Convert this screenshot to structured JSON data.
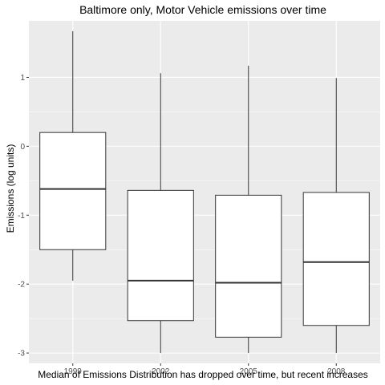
{
  "chart_data": {
    "type": "box",
    "title": "Baltimore only, Motor Vehicle emissions over time",
    "xlabel": "Median of Emissions Distribution has dropped over time, but recent increases",
    "ylabel": "Emissions (log units)",
    "categories": [
      "1999",
      "2002",
      "2005",
      "2008"
    ],
    "ylim": [
      -3.15,
      1.82
    ],
    "yticks": [
      -3,
      -2,
      -1,
      0,
      1
    ],
    "grid": true,
    "boxes": [
      {
        "category": "1999",
        "whisker_low": -1.95,
        "q1": -1.5,
        "median": -0.62,
        "q3": 0.2,
        "whisker_high": 1.67
      },
      {
        "category": "2002",
        "whisker_low": -3.0,
        "q1": -2.53,
        "median": -1.95,
        "q3": -0.64,
        "whisker_high": 1.06
      },
      {
        "category": "2005",
        "whisker_low": -3.0,
        "q1": -2.77,
        "median": -1.98,
        "q3": -0.71,
        "whisker_high": 1.17
      },
      {
        "category": "2008",
        "whisker_low": -3.0,
        "q1": -2.6,
        "median": -1.68,
        "q3": -0.67,
        "whisker_high": 0.99
      }
    ],
    "colors": {
      "panel": "#ebebeb",
      "grid_major": "#ffffff",
      "box_fill": "#ffffff",
      "box_line": "#333333",
      "tick_text": "#4d4d4d"
    }
  }
}
